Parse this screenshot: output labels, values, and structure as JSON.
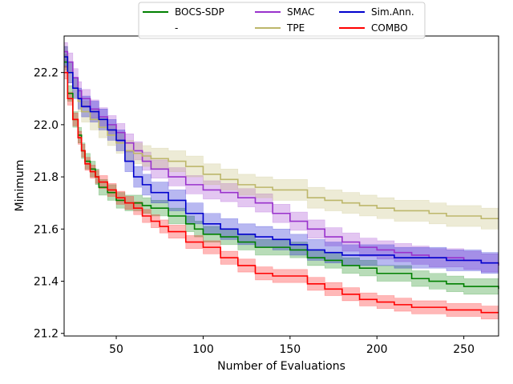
{
  "chart_data": {
    "type": "line",
    "title": "",
    "xlabel": "Number of Evaluations",
    "ylabel": "Minimum",
    "xlim": [
      20,
      270
    ],
    "ylim": [
      21.19,
      22.34
    ],
    "xticks": [
      50,
      100,
      150,
      200,
      250
    ],
    "yticks": [
      21.2,
      21.4,
      21.6,
      21.8,
      22.0,
      22.2
    ],
    "grid": false,
    "legend": {
      "placement": "top-center",
      "entries": [
        {
          "label": "BOCS-SDP",
          "color": "#008000"
        },
        {
          "label": "-",
          "color": ""
        },
        {
          "label": "SMAC",
          "color": "#9932cc"
        },
        {
          "label": "TPE",
          "color": "#bdb76b"
        },
        {
          "label": "Sim.Ann.",
          "color": "#0000cd"
        },
        {
          "label": "COMBO",
          "color": "#ff0000"
        }
      ]
    },
    "series": [
      {
        "name": "BOCS-SDP",
        "color": "#008000",
        "x": [
          20,
          22,
          25,
          28,
          30,
          32,
          35,
          38,
          40,
          45,
          50,
          55,
          60,
          65,
          70,
          80,
          90,
          95,
          100,
          110,
          120,
          130,
          150,
          160,
          170,
          180,
          190,
          200,
          210,
          220,
          230,
          240,
          250,
          260,
          270
        ],
        "y": [
          22.24,
          22.12,
          22.02,
          21.96,
          21.9,
          21.86,
          21.83,
          21.8,
          21.76,
          21.74,
          21.71,
          21.7,
          21.7,
          21.69,
          21.68,
          21.65,
          21.62,
          21.6,
          21.58,
          21.57,
          21.55,
          21.53,
          21.52,
          21.49,
          21.48,
          21.46,
          21.45,
          21.43,
          21.43,
          21.41,
          21.4,
          21.39,
          21.38,
          21.38,
          21.37
        ],
        "band": 0.03
      },
      {
        "name": "SMAC",
        "color": "#9932cc",
        "x": [
          20,
          22,
          25,
          28,
          30,
          35,
          40,
          45,
          50,
          55,
          60,
          65,
          70,
          80,
          90,
          100,
          110,
          120,
          130,
          140,
          150,
          160,
          170,
          180,
          190,
          200,
          210,
          220,
          230,
          240,
          250,
          260,
          270
        ],
        "y": [
          22.28,
          22.24,
          22.18,
          22.13,
          22.1,
          22.06,
          22.03,
          22.0,
          21.97,
          21.93,
          21.9,
          21.86,
          21.83,
          21.8,
          21.77,
          21.75,
          21.74,
          21.72,
          21.7,
          21.66,
          21.63,
          21.6,
          21.57,
          21.55,
          21.53,
          21.52,
          21.51,
          21.5,
          21.49,
          21.49,
          21.48,
          21.47,
          21.46
        ],
        "band": 0.035
      },
      {
        "name": "TPE",
        "color": "#bdb76b",
        "x": [
          20,
          22,
          25,
          28,
          30,
          35,
          40,
          45,
          50,
          55,
          60,
          65,
          70,
          80,
          90,
          100,
          110,
          120,
          130,
          140,
          150,
          160,
          170,
          180,
          190,
          200,
          210,
          220,
          230,
          240,
          250,
          260,
          270
        ],
        "y": [
          22.26,
          22.2,
          22.14,
          22.09,
          22.05,
          22.02,
          21.99,
          21.96,
          21.93,
          21.9,
          21.89,
          21.88,
          21.87,
          21.86,
          21.84,
          21.81,
          21.79,
          21.77,
          21.76,
          21.75,
          21.75,
          21.72,
          21.71,
          21.7,
          21.69,
          21.68,
          21.67,
          21.67,
          21.66,
          21.65,
          21.65,
          21.64,
          21.64
        ],
        "band": 0.04
      },
      {
        "name": "Sim.Ann.",
        "color": "#0000cd",
        "x": [
          20,
          22,
          25,
          28,
          30,
          35,
          40,
          45,
          50,
          55,
          60,
          65,
          70,
          80,
          90,
          100,
          110,
          120,
          130,
          140,
          150,
          160,
          170,
          180,
          190,
          200,
          210,
          220,
          230,
          240,
          250,
          260,
          270
        ],
        "y": [
          22.26,
          22.2,
          22.14,
          22.1,
          22.07,
          22.05,
          22.02,
          21.98,
          21.94,
          21.86,
          21.8,
          21.77,
          21.74,
          21.71,
          21.66,
          21.62,
          21.6,
          21.58,
          21.57,
          21.56,
          21.54,
          21.52,
          21.51,
          21.5,
          21.5,
          21.5,
          21.49,
          21.49,
          21.49,
          21.48,
          21.48,
          21.47,
          21.47
        ],
        "band": 0.04
      },
      {
        "name": "COMBO",
        "color": "#ff0000",
        "x": [
          20,
          22,
          25,
          28,
          30,
          32,
          35,
          38,
          40,
          45,
          50,
          55,
          60,
          65,
          70,
          75,
          80,
          90,
          100,
          110,
          120,
          130,
          140,
          150,
          160,
          170,
          180,
          190,
          200,
          210,
          220,
          230,
          240,
          250,
          260,
          270
        ],
        "y": [
          22.2,
          22.1,
          22.02,
          21.95,
          21.9,
          21.85,
          21.82,
          21.8,
          21.78,
          21.75,
          21.72,
          21.7,
          21.68,
          21.65,
          21.63,
          21.61,
          21.59,
          21.55,
          21.53,
          21.49,
          21.46,
          21.43,
          21.42,
          21.42,
          21.39,
          21.37,
          21.35,
          21.33,
          21.32,
          21.31,
          21.3,
          21.3,
          21.29,
          21.29,
          21.28,
          21.28
        ],
        "band": 0.025
      }
    ]
  }
}
